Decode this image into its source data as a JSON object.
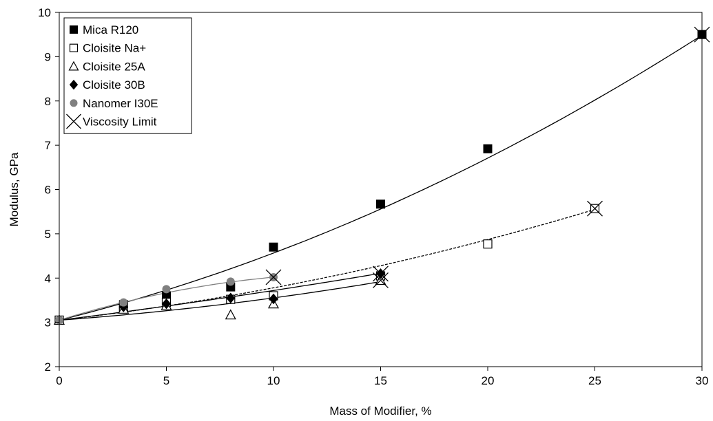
{
  "chart_data": {
    "type": "scatter",
    "xlabel": "Mass of Modifier, %",
    "ylabel": "Modulus, GPa",
    "xlim": [
      0,
      30
    ],
    "ylim": [
      2,
      10
    ],
    "xticks": [
      "0",
      "5",
      "10",
      "15",
      "20",
      "25",
      "30"
    ],
    "yticks": [
      "2",
      "3",
      "4",
      "5",
      "6",
      "7",
      "8",
      "9",
      "10"
    ],
    "grid": false,
    "legend_position": "top-left",
    "series": [
      {
        "name": "Mica R120",
        "marker": "filled-square",
        "color": "#000000",
        "x": [
          0,
          3,
          5,
          8,
          10,
          15,
          20,
          30
        ],
        "y": [
          3.05,
          3.4,
          3.6,
          3.8,
          4.7,
          5.67,
          6.92,
          9.5
        ]
      },
      {
        "name": "Cloisite Na+",
        "marker": "open-square",
        "color": "#000000",
        "x": [
          0,
          3,
          5,
          8,
          10,
          15,
          20,
          25
        ],
        "y": [
          3.05,
          3.35,
          3.45,
          3.52,
          3.6,
          4.05,
          4.77,
          5.57
        ]
      },
      {
        "name": "Cloisite 25A",
        "marker": "open-triangle",
        "color": "#000000",
        "x": [
          0,
          3,
          5,
          8,
          10,
          15
        ],
        "y": [
          3.05,
          3.3,
          3.38,
          3.17,
          3.42,
          3.95
        ]
      },
      {
        "name": "Cloisite 30B",
        "marker": "filled-diamond",
        "color": "#000000",
        "x": [
          0,
          3,
          5,
          8,
          10,
          15
        ],
        "y": [
          3.05,
          3.35,
          3.42,
          3.55,
          3.53,
          4.1
        ]
      },
      {
        "name": "Nanomer I30E",
        "marker": "filled-circle",
        "color": "#808080",
        "x": [
          0,
          3,
          5,
          8,
          10
        ],
        "y": [
          3.05,
          3.45,
          3.75,
          3.92,
          4.02
        ]
      },
      {
        "name": "Viscosity Limit",
        "marker": "x",
        "color": "#000000",
        "x": [
          10,
          15,
          15,
          25,
          30
        ],
        "y": [
          4.02,
          4.1,
          3.95,
          5.57,
          9.5
        ]
      }
    ],
    "trendlines": [
      {
        "series": "Mica R120",
        "color": "#000000",
        "coef": [
          3.05,
          0.12,
          0.00315
        ]
      },
      {
        "series": "Cloisite Na+",
        "color": "#000000",
        "dash": "4,2",
        "coef": [
          3.05,
          0.055,
          0.0018
        ]
      },
      {
        "series": "Cloisite 25A",
        "color": "#000000",
        "coef": [
          3.05,
          0.035,
          0.00153
        ]
      },
      {
        "series": "Cloisite 30B",
        "color": "#000000",
        "coef": [
          3.05,
          0.06,
          0.0007
        ]
      },
      {
        "series": "Nanomer I30E",
        "color": "#808080",
        "coef": [
          3.05,
          0.15,
          -0.0053
        ]
      }
    ]
  }
}
